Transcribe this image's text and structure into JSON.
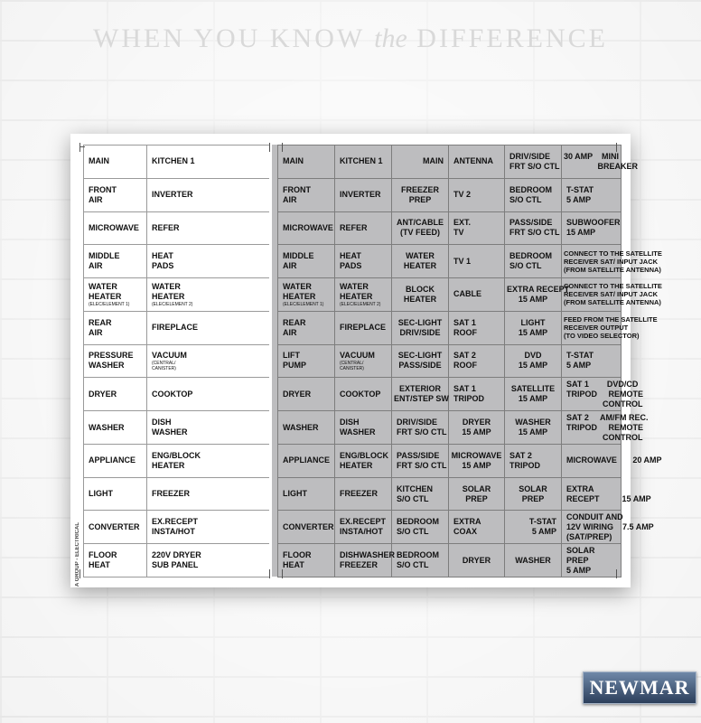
{
  "tagline": {
    "before": "WHEN YOU KNOW ",
    "em": "the",
    "after": " DIFFERENCE"
  },
  "brand": "NEWMAR",
  "panel_label": "A GROUP - ELECTRICAL",
  "left_panel": [
    [
      {
        "t": "MAIN"
      },
      {
        "t": "KITCHEN 1"
      }
    ],
    [
      {
        "t": "FRONT\nAIR"
      },
      {
        "t": "INVERTER"
      }
    ],
    [
      {
        "t": "MICROWAVE"
      },
      {
        "t": "REFER"
      }
    ],
    [
      {
        "t": "MIDDLE\nAIR"
      },
      {
        "t": "HEAT\nPADS"
      }
    ],
    [
      {
        "t": "WATER\nHEATER",
        "s": "(ELEC/ELEMENT 1)"
      },
      {
        "t": "WATER\nHEATER",
        "s": "(ELEC/ELEMENT 2)"
      }
    ],
    [
      {
        "t": "REAR\nAIR"
      },
      {
        "t": "FIREPLACE"
      }
    ],
    [
      {
        "t": "PRESSURE\nWASHER"
      },
      {
        "t": "VACUUM",
        "s": "(CENTRAL/\nCANISTER)"
      }
    ],
    [
      {
        "t": "DRYER"
      },
      {
        "t": "COOKTOP"
      }
    ],
    [
      {
        "t": "WASHER"
      },
      {
        "t": "DISH\nWASHER"
      }
    ],
    [
      {
        "t": "APPLIANCE"
      },
      {
        "t": "ENG/BLOCK\nHEATER"
      }
    ],
    [
      {
        "t": "LIGHT"
      },
      {
        "t": "FREEZER"
      }
    ],
    [
      {
        "t": "CONVERTER"
      },
      {
        "t": "EX.RECEPT\nINSTA/HOT"
      }
    ],
    [
      {
        "t": "FLOOR\nHEAT"
      },
      {
        "t": "220V DRYER\nSUB PANEL"
      }
    ]
  ],
  "right_panel": [
    [
      {
        "t": "MAIN"
      },
      {
        "t": "KITCHEN 1"
      },
      {
        "t": "MAIN",
        "a": "r"
      },
      {
        "t": "ANTENNA"
      },
      {
        "t": "DRIV/SIDE\nFRT S/O CTL"
      },
      {
        "t": "30 AMP    MINI\n               BREAKER",
        "a": "c"
      }
    ],
    [
      {
        "t": "FRONT\nAIR"
      },
      {
        "t": "INVERTER"
      },
      {
        "t": "FREEZER\nPREP",
        "a": "c"
      },
      {
        "t": "TV 2"
      },
      {
        "t": "BEDROOM\nS/O CTL"
      },
      {
        "t": "T-STAT\n5 AMP"
      }
    ],
    [
      {
        "t": "MICROWAVE"
      },
      {
        "t": "REFER"
      },
      {
        "t": "ANT/CABLE\n(TV FEED)",
        "a": "c"
      },
      {
        "t": "EXT.\nTV"
      },
      {
        "t": "PASS/SIDE\nFRT S/O CTL"
      },
      {
        "t": "SUBWOOFER\n15 AMP"
      }
    ],
    [
      {
        "t": "MIDDLE\nAIR"
      },
      {
        "t": "HEAT\nPADS"
      },
      {
        "t": "WATER\nHEATER",
        "a": "c"
      },
      {
        "t": "TV 1"
      },
      {
        "t": "BEDROOM\nS/O CTL"
      },
      {
        "t": "CONNECT TO THE SATELLITE\nRECEIVER SAT/ INPUT JACK\n(FROM SATELLITE ANTENNA)",
        "a": "c",
        "f": "s"
      }
    ],
    [
      {
        "t": "WATER\nHEATER",
        "s": "(ELEC/ELEMENT 1)"
      },
      {
        "t": "WATER\nHEATER",
        "s": "(ELEC/ELEMENT 2)"
      },
      {
        "t": "BLOCK\nHEATER",
        "a": "c"
      },
      {
        "t": "CABLE"
      },
      {
        "t": "EXTRA RECEPT\n15 AMP",
        "a": "c"
      },
      {
        "t": "CONNECT TO THE SATELLITE\nRECEIVER SAT/ INPUT JACK\n(FROM SATELLITE ANTENNA)",
        "a": "c",
        "f": "s"
      }
    ],
    [
      {
        "t": "REAR\nAIR"
      },
      {
        "t": "FIREPLACE"
      },
      {
        "t": "SEC-LIGHT\nDRIV/SIDE",
        "a": "c"
      },
      {
        "t": "SAT 1\nROOF"
      },
      {
        "t": "LIGHT\n15 AMP",
        "a": "c"
      },
      {
        "t": "FEED FROM THE SATELLITE\nRECEIVER OUTPUT\n(TO VIDEO SELECTOR)",
        "a": "c",
        "f": "s"
      }
    ],
    [
      {
        "t": "LIFT\nPUMP"
      },
      {
        "t": "VACUUM",
        "s": "(CENTRAL/\nCANISTER)"
      },
      {
        "t": "SEC-LIGHT\nPASS/SIDE",
        "a": "c"
      },
      {
        "t": "SAT 2\nROOF"
      },
      {
        "t": "DVD\n15 AMP",
        "a": "c"
      },
      {
        "t": "T-STAT\n5 AMP"
      }
    ],
    [
      {
        "t": "DRYER"
      },
      {
        "t": "COOKTOP"
      },
      {
        "t": "EXTERIOR\nENT/STEP SW",
        "a": "c"
      },
      {
        "t": "SAT 1\nTRIPOD"
      },
      {
        "t": "SATELLITE\n15 AMP",
        "a": "c"
      },
      {
        "t": "SAT 1        DVD/CD\nTRIPOD     REMOTE\n                CONTROL"
      }
    ],
    [
      {
        "t": "WASHER"
      },
      {
        "t": "DISH\nWASHER"
      },
      {
        "t": "DRIV/SIDE\nFRT S/O CTL"
      },
      {
        "t": "DRYER\n15 AMP",
        "a": "c"
      },
      {
        "t": "WASHER\n15 AMP",
        "a": "c"
      },
      {
        "t": "SAT 2     AM/FM REC.\nTRIPOD     REMOTE\n                CONTROL"
      }
    ],
    [
      {
        "t": "APPLIANCE"
      },
      {
        "t": "ENG/BLOCK\nHEATER"
      },
      {
        "t": "PASS/SIDE\nFRT S/O CTL"
      },
      {
        "t": "MICROWAVE\n15 AMP",
        "a": "c"
      },
      {
        "t": "SAT 2\nTRIPOD"
      },
      {
        "t": "MICROWAVE       20 AMP"
      }
    ],
    [
      {
        "t": "LIGHT"
      },
      {
        "t": "FREEZER"
      },
      {
        "t": "KITCHEN\nS/O CTL"
      },
      {
        "t": "SOLAR\nPREP",
        "a": "c"
      },
      {
        "t": "SOLAR\nPREP",
        "a": "c"
      },
      {
        "t": "EXTRA\nRECEPT          15 AMP"
      }
    ],
    [
      {
        "t": "CONVERTER"
      },
      {
        "t": "EX.RECEPT\nINSTA/HOT"
      },
      {
        "t": "BEDROOM\nS/O CTL"
      },
      {
        "t": "EXTRA\nCOAX"
      },
      {
        "t": "T-STAT\n5 AMP",
        "a": "r"
      },
      {
        "t": "CONDUIT AND\n12V WIRING    7.5 AMP\n(SAT/PREP)"
      }
    ],
    [
      {
        "t": "FLOOR\nHEAT"
      },
      {
        "t": "DISHWASHER\nFREEZER"
      },
      {
        "t": "BEDROOM\nS/O CTL"
      },
      {
        "t": "DRYER",
        "a": "c"
      },
      {
        "t": "WASHER",
        "a": "c"
      },
      {
        "t": "SOLAR\nPREP\n5 AMP"
      }
    ]
  ]
}
